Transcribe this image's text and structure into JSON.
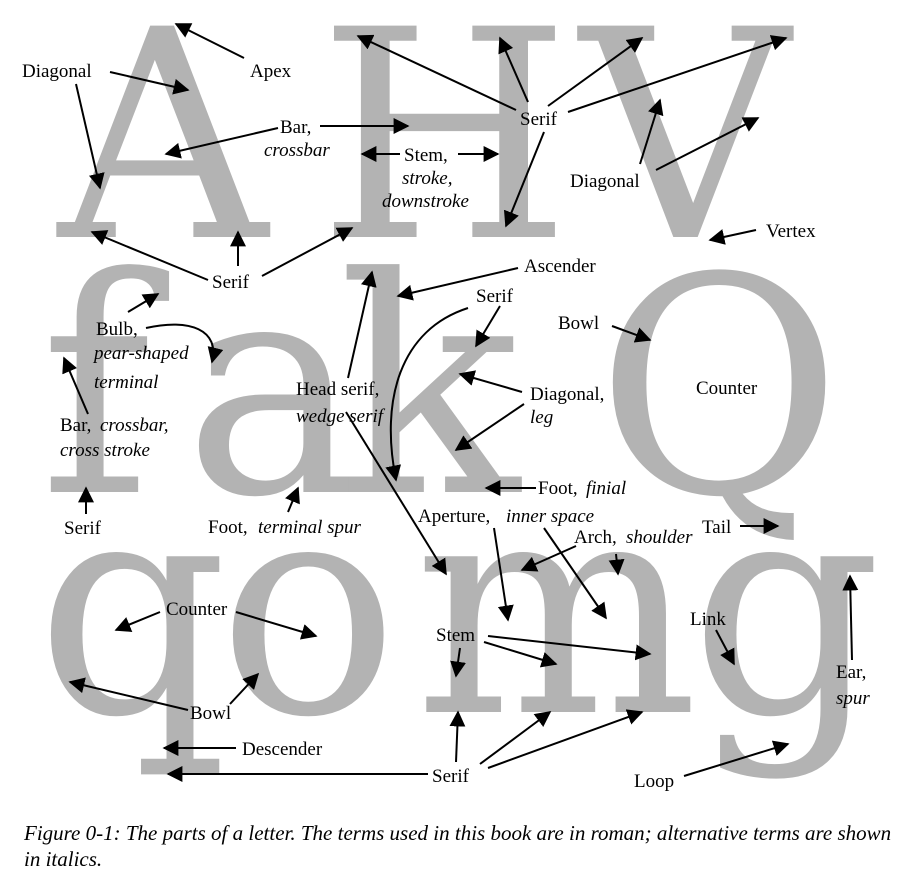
{
  "glyphs": {
    "A": "A",
    "H": "H",
    "V": "V",
    "f": "f",
    "a": "a",
    "k": "k",
    "Q": "Q",
    "q": "q",
    "o": "o",
    "m": "m",
    "g": "g"
  },
  "labels": {
    "diagonal_a": "Diagonal",
    "apex": "Apex",
    "bar_a": "Bar,",
    "bar_a_alt": "crossbar",
    "stem_h": "Stem,",
    "stem_h_alt1": "stroke,",
    "stem_h_alt2": "downstroke",
    "serif_top": "Serif",
    "diagonal_v": "Diagonal",
    "vertex": "Vertex",
    "serif_a": "Serif",
    "ascender": "Ascender",
    "serif_k": "Serif",
    "bowl_q": "Bowl",
    "counter_q": "Counter",
    "bulb": "Bulb,",
    "bulb_alt1": "pear-shaped",
    "bulb_alt2": "terminal",
    "head_serif": "Head serif,",
    "head_serif_alt": "wedge serif",
    "diagonal_k": "Diagonal,",
    "diagonal_k_alt": "leg",
    "bar_f": "Bar,",
    "bar_f_alt1": "crossbar,",
    "bar_f_alt2": "cross stroke",
    "foot_k": "Foot,",
    "foot_k_alt": "finial",
    "serif_f": "Serif",
    "foot_a": "Foot,",
    "foot_a_alt": "terminal spur",
    "aperture": "Aperture,",
    "aperture_alt": "inner space",
    "tail": "Tail",
    "arch": "Arch,",
    "arch_alt": "shoulder",
    "counter_o": "Counter",
    "stem_m": "Stem",
    "link": "Link",
    "ear": "Ear,",
    "ear_alt": "spur",
    "bowl_o": "Bowl",
    "descender": "Descender",
    "serif_bottom": "Serif",
    "loop": "Loop"
  },
  "caption": "Figure 0-1:  The parts of a letter. The terms used in this book are in roman; alternative terms are shown in italics."
}
